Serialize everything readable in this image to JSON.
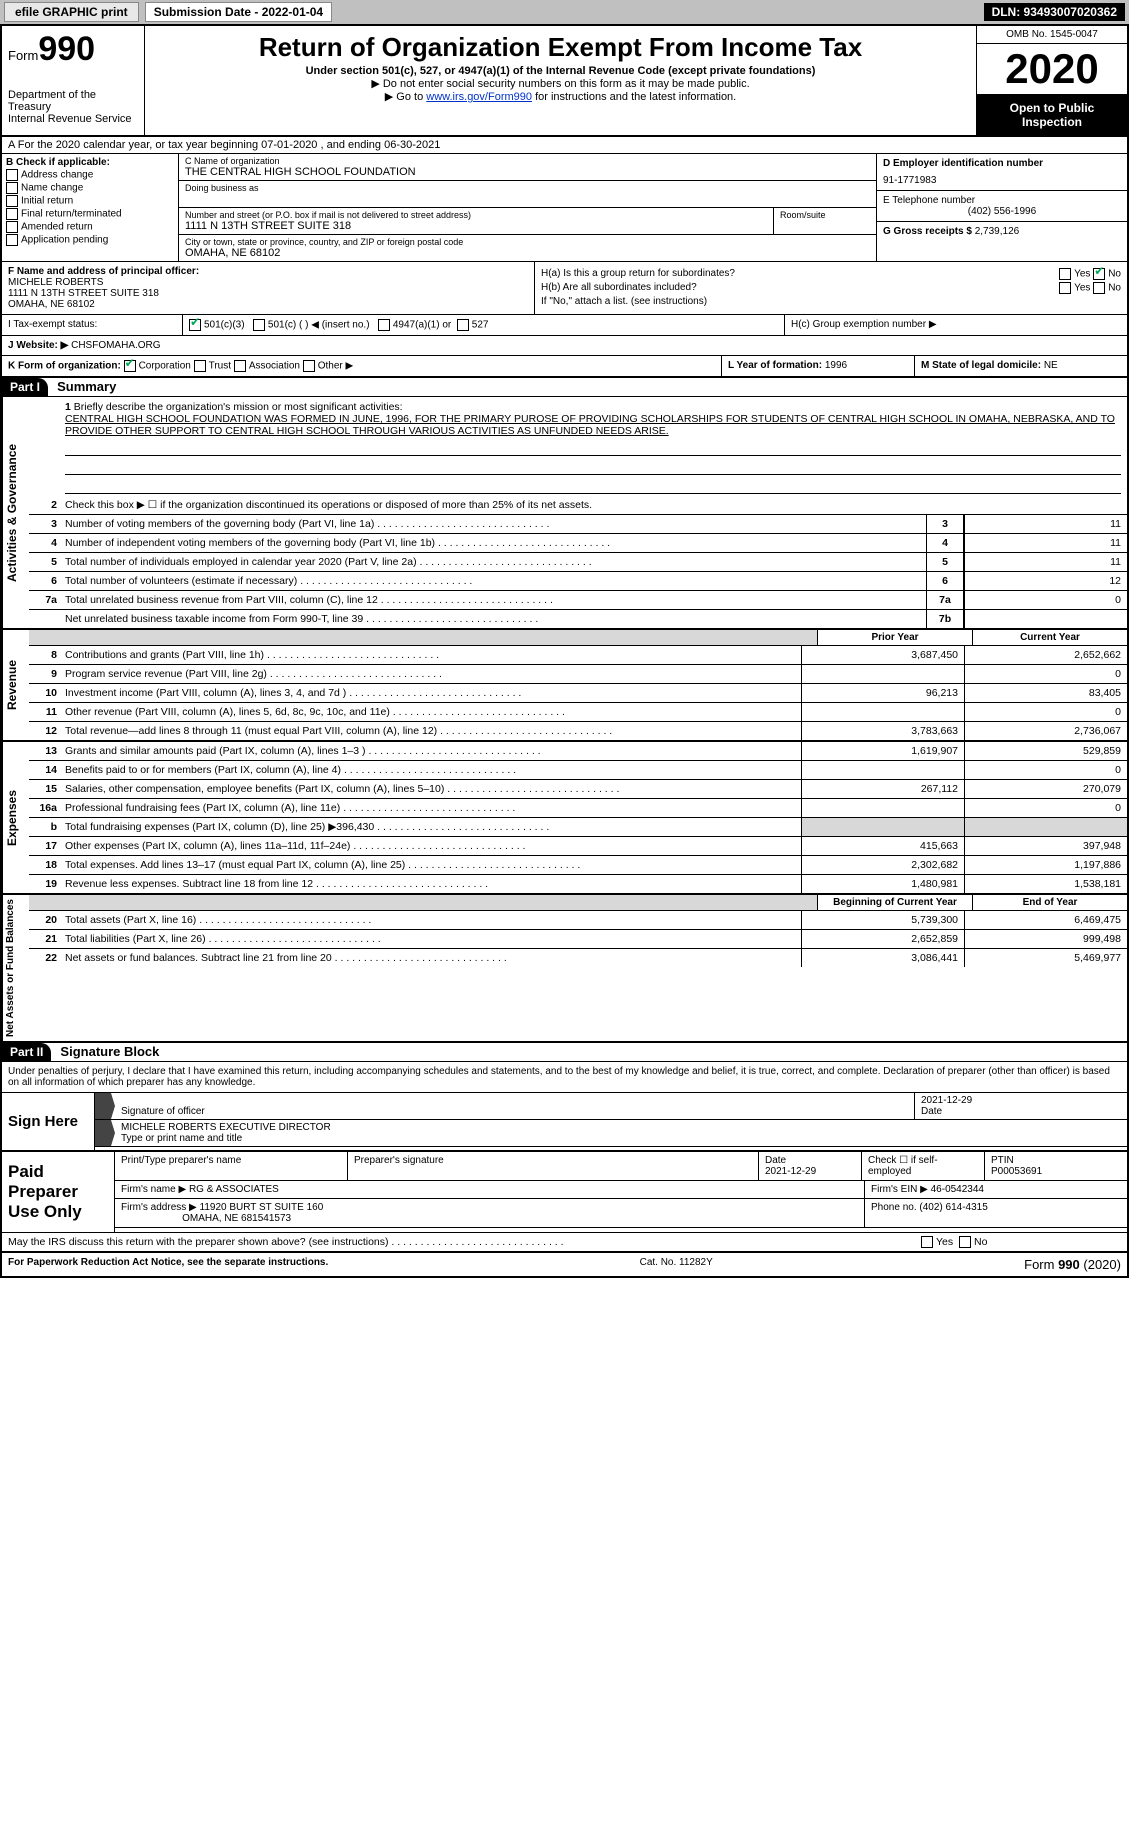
{
  "topbar": {
    "efile": "efile GRAPHIC print",
    "sub_label": "Submission Date - 2022-01-04",
    "dln": "DLN: 93493007020362"
  },
  "header": {
    "form_prefix": "Form",
    "form_num": "990",
    "dept1": "Department of the Treasury",
    "dept2": "Internal Revenue Service",
    "title": "Return of Organization Exempt From Income Tax",
    "sub": "Under section 501(c), 527, or 4947(a)(1) of the Internal Revenue Code (except private foundations)",
    "note1": "▶ Do not enter social security numbers on this form as it may be made public.",
    "note2": "▶ Go to www.irs.gov/Form990 for instructions and the latest information.",
    "omb": "OMB No. 1545-0047",
    "year": "2020",
    "open": "Open to Public Inspection",
    "link": "www.irs.gov/Form990"
  },
  "line_a": "A For the 2020 calendar year, or tax year beginning 07-01-2020   , and ending 06-30-2021",
  "col_b": {
    "hdr": "B Check if applicable:",
    "o1": "Address change",
    "o2": "Name change",
    "o3": "Initial return",
    "o4": "Final return/terminated",
    "o5": "Amended return",
    "o6": "Application pending"
  },
  "col_c": {
    "name_lab": "C Name of organization",
    "name": "THE CENTRAL HIGH SCHOOL FOUNDATION",
    "dba_lab": "Doing business as",
    "addr_lab": "Number and street (or P.O. box if mail is not delivered to street address)",
    "addr": "1111 N 13TH STREET SUITE 318",
    "room_lab": "Room/suite",
    "city_lab": "City or town, state or province, country, and ZIP or foreign postal code",
    "city": "OMAHA, NE  68102"
  },
  "col_d": {
    "ein_lab": "D Employer identification number",
    "ein": "91-1771983",
    "tel_lab": "E Telephone number",
    "tel": "(402) 556-1996",
    "gross_lab": "G Gross receipts $",
    "gross": "2,739,126"
  },
  "col_f": {
    "lab": "F Name and address of principal officer:",
    "l1": "MICHELE ROBERTS",
    "l2": "1111 N 13TH STREET SUITE 318",
    "l3": "OMAHA, NE  68102"
  },
  "col_h": {
    "ha": "H(a)  Is this a group return for subordinates?",
    "hb": "H(b)  Are all subordinates included?",
    "hnote": "If \"No,\" attach a list. (see instructions)",
    "hc": "H(c)  Group exemption number ▶",
    "yes": "Yes",
    "no": "No"
  },
  "status": {
    "lab": "I  Tax-exempt status:",
    "o1": "501(c)(3)",
    "o2": "501(c) (  ) ◀ (insert no.)",
    "o3": "4947(a)(1) or",
    "o4": "527"
  },
  "website": {
    "lab": "J Website: ▶",
    "val": "CHSFOMAHA.ORG"
  },
  "korg": {
    "lab": "K Form of organization:",
    "o1": "Corporation",
    "o2": "Trust",
    "o3": "Association",
    "o4": "Other ▶",
    "l_lab": "L Year of formation:",
    "l_val": "1996",
    "m_lab": "M State of legal domicile:",
    "m_val": "NE"
  },
  "parts": {
    "p1": "Part I",
    "p1t": "Summary",
    "p2": "Part II",
    "p2t": "Signature Block"
  },
  "vtabs": {
    "ag": "Activities & Governance",
    "rev": "Revenue",
    "exp": "Expenses",
    "net": "Net Assets or\nFund Balances"
  },
  "summary": {
    "l1": "Briefly describe the organization's mission or most significant activities:",
    "mission": "CENTRAL HIGH SCHOOL FOUNDATION WAS FORMED IN JUNE, 1996, FOR THE PRIMARY PUROSE OF PROVIDING SCHOLARSHIPS FOR STUDENTS OF CENTRAL HIGH SCHOOL IN OMAHA, NEBRASKA, AND TO PROVIDE OTHER SUPPORT TO CENTRAL HIGH SCHOOL THROUGH VARIOUS ACTIVITIES AS UNFUNDED NEEDS ARISE.",
    "l2": "Check this box ▶ ☐ if the organization discontinued its operations or disposed of more than 25% of its net assets.",
    "rows_ag": [
      {
        "n": "3",
        "t": "Number of voting members of the governing body (Part VI, line 1a)",
        "box": "3",
        "v": "11"
      },
      {
        "n": "4",
        "t": "Number of independent voting members of the governing body (Part VI, line 1b)",
        "box": "4",
        "v": "11"
      },
      {
        "n": "5",
        "t": "Total number of individuals employed in calendar year 2020 (Part V, line 2a)",
        "box": "5",
        "v": "11"
      },
      {
        "n": "6",
        "t": "Total number of volunteers (estimate if necessary)",
        "box": "6",
        "v": "12"
      },
      {
        "n": "7a",
        "t": "Total unrelated business revenue from Part VIII, column (C), line 12",
        "box": "7a",
        "v": "0"
      },
      {
        "n": "",
        "t": "Net unrelated business taxable income from Form 990-T, line 39",
        "box": "7b",
        "v": ""
      }
    ],
    "hdr_prior": "Prior Year",
    "hdr_curr": "Current Year",
    "rows_rev": [
      {
        "n": "8",
        "t": "Contributions and grants (Part VIII, line 1h)",
        "p": "3,687,450",
        "c": "2,652,662"
      },
      {
        "n": "9",
        "t": "Program service revenue (Part VIII, line 2g)",
        "p": "",
        "c": "0"
      },
      {
        "n": "10",
        "t": "Investment income (Part VIII, column (A), lines 3, 4, and 7d )",
        "p": "96,213",
        "c": "83,405"
      },
      {
        "n": "11",
        "t": "Other revenue (Part VIII, column (A), lines 5, 6d, 8c, 9c, 10c, and 11e)",
        "p": "",
        "c": "0"
      },
      {
        "n": "12",
        "t": "Total revenue—add lines 8 through 11 (must equal Part VIII, column (A), line 12)",
        "p": "3,783,663",
        "c": "2,736,067"
      }
    ],
    "rows_exp": [
      {
        "n": "13",
        "t": "Grants and similar amounts paid (Part IX, column (A), lines 1–3 )",
        "p": "1,619,907",
        "c": "529,859"
      },
      {
        "n": "14",
        "t": "Benefits paid to or for members (Part IX, column (A), line 4)",
        "p": "",
        "c": "0"
      },
      {
        "n": "15",
        "t": "Salaries, other compensation, employee benefits (Part IX, column (A), lines 5–10)",
        "p": "267,112",
        "c": "270,079"
      },
      {
        "n": "16a",
        "t": "Professional fundraising fees (Part IX, column (A), line 11e)",
        "p": "",
        "c": "0"
      },
      {
        "n": "b",
        "t": "Total fundraising expenses (Part IX, column (D), line 25) ▶396,430",
        "p": "shade",
        "c": "shade"
      },
      {
        "n": "17",
        "t": "Other expenses (Part IX, column (A), lines 11a–11d, 11f–24e)",
        "p": "415,663",
        "c": "397,948"
      },
      {
        "n": "18",
        "t": "Total expenses. Add lines 13–17 (must equal Part IX, column (A), line 25)",
        "p": "2,302,682",
        "c": "1,197,886"
      },
      {
        "n": "19",
        "t": "Revenue less expenses. Subtract line 18 from line 12",
        "p": "1,480,981",
        "c": "1,538,181"
      }
    ],
    "hdr_beg": "Beginning of Current Year",
    "hdr_end": "End of Year",
    "rows_net": [
      {
        "n": "20",
        "t": "Total assets (Part X, line 16)",
        "p": "5,739,300",
        "c": "6,469,475"
      },
      {
        "n": "21",
        "t": "Total liabilities (Part X, line 26)",
        "p": "2,652,859",
        "c": "999,498"
      },
      {
        "n": "22",
        "t": "Net assets or fund balances. Subtract line 21 from line 20",
        "p": "3,086,441",
        "c": "5,469,977"
      }
    ]
  },
  "sig": {
    "decl": "Under penalties of perjury, I declare that I have examined this return, including accompanying schedules and statements, and to the best of my knowledge and belief, it is true, correct, and complete. Declaration of preparer (other than officer) is based on all information of which preparer has any knowledge.",
    "sign_here": "Sign Here",
    "sig_off": "Signature of officer",
    "date": "Date",
    "sig_date": "2021-12-29",
    "name_title": "MICHELE ROBERTS EXECUTIVE DIRECTOR",
    "type_lab": "Type or print name and title",
    "paid": "Paid Preparer Use Only",
    "p_name_lab": "Print/Type preparer's name",
    "p_sig_lab": "Preparer's signature",
    "p_date": "2021-12-29",
    "p_check": "Check ☐ if self-employed",
    "ptin_lab": "PTIN",
    "ptin": "P00053691",
    "firm_name_lab": "Firm's name   ▶",
    "firm_name": "RG & ASSOCIATES",
    "firm_ein_lab": "Firm's EIN ▶",
    "firm_ein": "46-0542344",
    "firm_addr_lab": "Firm's address ▶",
    "firm_addr1": "11920 BURT ST SUITE 160",
    "firm_addr2": "OMAHA, NE  681541573",
    "phone_lab": "Phone no.",
    "phone": "(402) 614-4315",
    "may": "May the IRS discuss this return with the preparer shown above? (see instructions)"
  },
  "footer": {
    "l": "For Paperwork Reduction Act Notice, see the separate instructions.",
    "m": "Cat. No. 11282Y",
    "r": "Form 990 (2020)"
  }
}
